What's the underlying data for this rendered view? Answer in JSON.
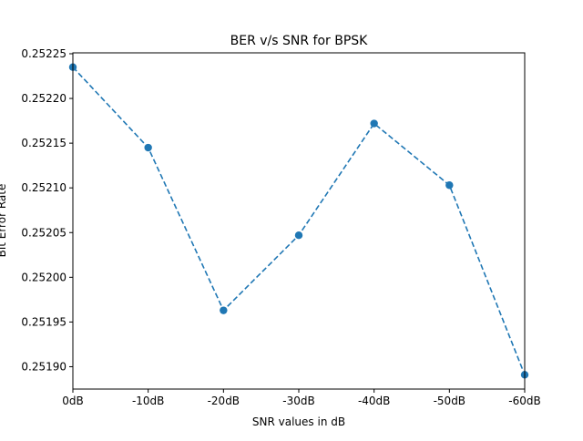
{
  "chart_data": {
    "type": "line",
    "title": "BER v/s SNR for BPSK",
    "xlabel": "SNR values in dB",
    "ylabel": "Bit Error Rate",
    "categories": [
      "0dB",
      "-10dB",
      "-20dB",
      "-30dB",
      "-40dB",
      "-50dB",
      "-60dB"
    ],
    "series": [
      {
        "values": [
          0.252235,
          0.252145,
          0.251963,
          0.252047,
          0.252172,
          0.252103,
          0.251891
        ]
      }
    ],
    "ylim": [
      0.251875,
      0.252251
    ],
    "yticks": [
      0.2519,
      0.25195,
      0.252,
      0.25205,
      0.2521,
      0.25215,
      0.2522,
      0.25225
    ],
    "ytick_labels": [
      "0.25190",
      "0.25195",
      "0.25200",
      "0.25205",
      "0.25210",
      "0.25215",
      "0.25220",
      "0.25225"
    ],
    "line_style": "dashed",
    "marker": "circle",
    "color": "#1f77b4",
    "grid": false
  }
}
